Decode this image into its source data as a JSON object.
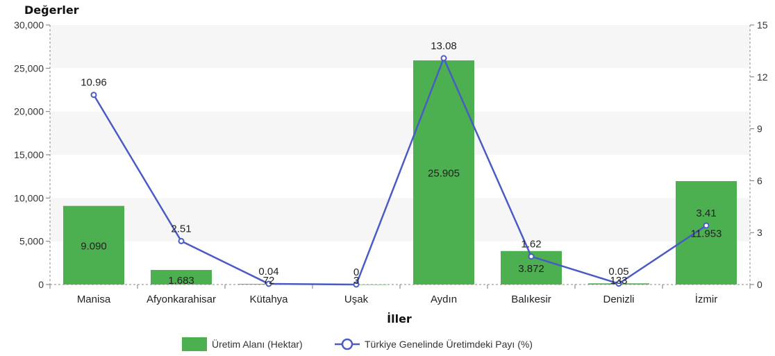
{
  "chart_data": {
    "type": "bar",
    "title": "Değerler",
    "xlabel": "İller",
    "categories": [
      "Manisa",
      "Afyonkarahisar",
      "Kütahya",
      "Uşak",
      "Aydın",
      "Balıkesir",
      "Denizli",
      "İzmir"
    ],
    "series": [
      {
        "name": "Üretim Alanı (Hektar)",
        "type": "bar",
        "axis": "left",
        "values": [
          9090,
          1683,
          72,
          3,
          25905,
          3872,
          133,
          11953
        ],
        "labels": [
          "9.090",
          "1.683",
          "72",
          "3",
          "25.905",
          "3.872",
          "133",
          "11.953"
        ],
        "color": "#4caf50"
      },
      {
        "name": "Türkiye Genelinde Üretimdeki Payı (%)",
        "type": "line",
        "axis": "right",
        "values": [
          10.96,
          2.51,
          0.04,
          0,
          13.08,
          1.62,
          0.05,
          3.41
        ],
        "labels": [
          "10.96",
          "2.51",
          "0.04",
          "0",
          "13.08",
          "1.62",
          "0.05",
          "3.41"
        ],
        "color": "#4a5cc4"
      }
    ],
    "left_axis": {
      "ylim": [
        0,
        30000
      ],
      "ticks": [
        0,
        5000,
        10000,
        15000,
        20000,
        25000,
        30000
      ],
      "tick_labels": [
        "0",
        "5,000",
        "10,000",
        "15,000",
        "20,000",
        "25,000",
        "30,000"
      ]
    },
    "right_axis": {
      "ylim": [
        0,
        15
      ],
      "ticks": [
        0,
        3,
        6,
        9,
        12,
        15
      ],
      "tick_labels": [
        "0",
        "3",
        "6",
        "9",
        "12",
        "15"
      ]
    },
    "legend": "bottom-center",
    "grid": "alternating-bands"
  }
}
